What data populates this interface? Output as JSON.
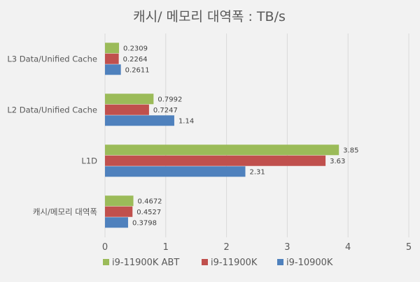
{
  "chart_data": {
    "type": "bar",
    "orientation": "horizontal",
    "title": "캐시/ 메모리 대역폭 : TB/s",
    "categories": [
      "L3 Data/Unified Cache",
      "L2 Data/Unified Cache",
      "L1D",
      "캐시/메모리 대역폭"
    ],
    "series": [
      {
        "name": "i9-11900K ABT",
        "color": "#9bbb59",
        "values": [
          0.2309,
          0.7992,
          3.85,
          0.4672
        ],
        "labels": [
          "0.2309",
          "0.7992",
          "3.85",
          "0.4672"
        ]
      },
      {
        "name": "i9-11900K",
        "color": "#c0504d",
        "values": [
          0.2264,
          0.7247,
          3.63,
          0.4527
        ],
        "labels": [
          "0.2264",
          "0.7247",
          "3.63",
          "0.4527"
        ]
      },
      {
        "name": "i9-10900K",
        "color": "#4f81bd",
        "values": [
          0.2611,
          1.14,
          2.31,
          0.3798
        ],
        "labels": [
          "0.2611",
          "1.14",
          "2.31",
          "0.3798"
        ]
      }
    ],
    "xlim": [
      0,
      5
    ],
    "xticks": [
      "0",
      "1",
      "2",
      "3",
      "4",
      "5"
    ],
    "grid": true,
    "legend": "bottom"
  }
}
